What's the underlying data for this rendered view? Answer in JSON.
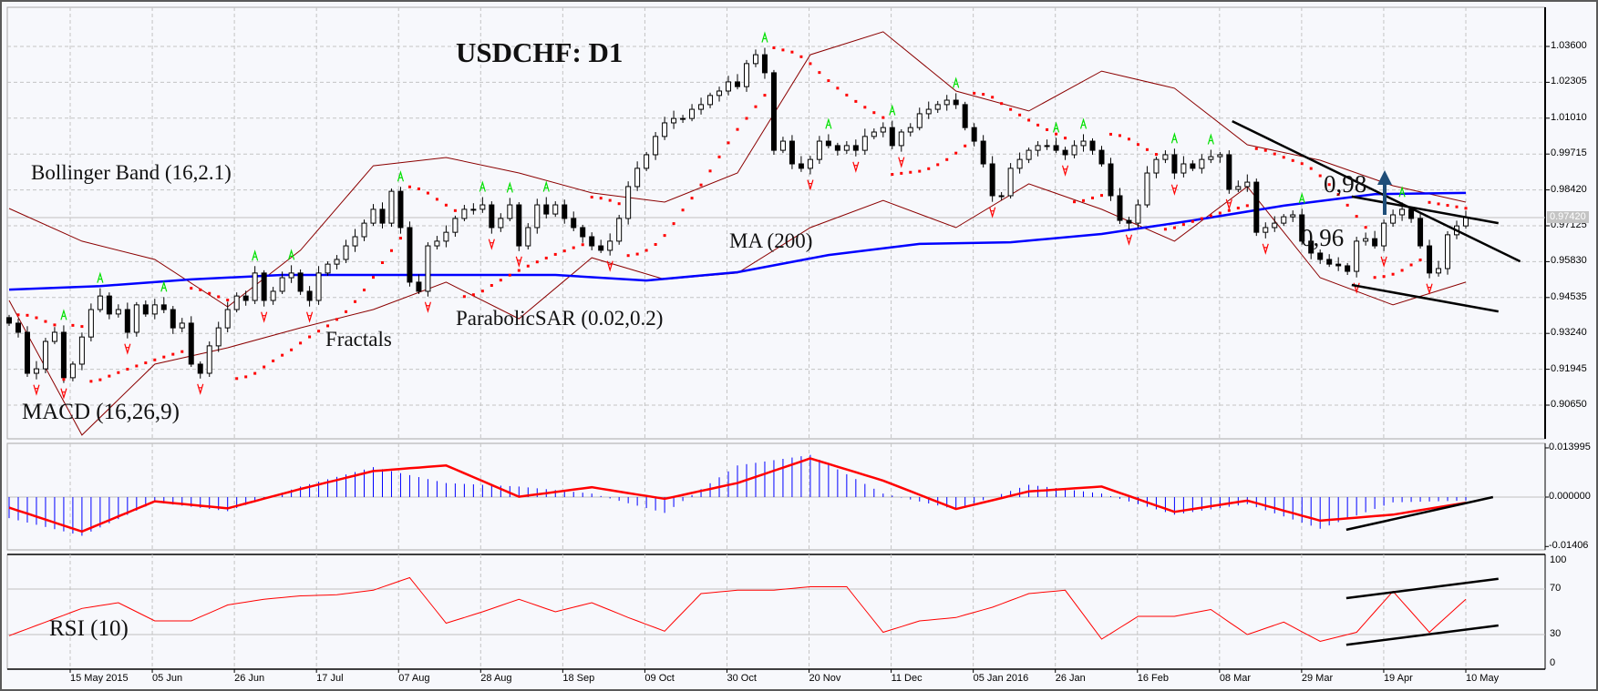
{
  "chart_data": {
    "type": "candlestick",
    "title": "USDCHF: D1",
    "price_axis": {
      "ticks": [
        "1.03600",
        "1.02305",
        "1.01010",
        "0.99715",
        "0.98420",
        "0.97125",
        "0.95830",
        "0.94535",
        "0.93240",
        "0.91945",
        "0.90650"
      ],
      "tick_values": [
        1.036,
        1.02305,
        1.0101,
        0.99715,
        0.9842,
        0.97125,
        0.9583,
        0.94535,
        0.9324,
        0.91945,
        0.9065
      ],
      "current_price": "0.97420",
      "current_price_value": 0.9742
    },
    "time_axis": {
      "ticks": [
        "15 May 2015",
        "05 Jun",
        "26 Jun",
        "17 Jul",
        "07 Aug",
        "28 Aug",
        "18 Sep",
        "09 Oct",
        "30 Oct",
        "20 Nov",
        "11 Dec",
        "05 Jan 2016",
        "26 Jan",
        "16 Feb",
        "08 Mar",
        "29 Mar",
        "19 Apr",
        "10 May"
      ],
      "last_bar_date": "10 May 2016"
    },
    "close": [
      0.9361,
      0.9328,
      0.918,
      0.9196,
      0.9295,
      0.9328,
      0.9164,
      0.9213,
      0.9311,
      0.941,
      0.9459,
      0.9394,
      0.941,
      0.9328,
      0.9427,
      0.9394,
      0.9427,
      0.941,
      0.9344,
      0.9361,
      0.9213,
      0.918,
      0.9279,
      0.9344,
      0.941,
      0.9459,
      0.9443,
      0.9542,
      0.9443,
      0.9476,
      0.9525,
      0.9542,
      0.9476,
      0.9443,
      0.9542,
      0.9574,
      0.9591,
      0.964,
      0.9673,
      0.9722,
      0.9772,
      0.9722,
      0.9837,
      0.9706,
      0.9509,
      0.9476,
      0.964,
      0.9657,
      0.9689,
      0.9739,
      0.9772,
      0.9772,
      0.9788,
      0.9706,
      0.9739,
      0.9788,
      0.964,
      0.9706,
      0.9788,
      0.9755,
      0.9788,
      0.9739,
      0.9706,
      0.9673,
      0.964,
      0.9624,
      0.9657,
      0.9739,
      0.9854,
      0.992,
      0.9969,
      1.0035,
      1.0084,
      1.01,
      1.01,
      1.0133,
      1.015,
      1.0183,
      1.0199,
      1.0232,
      1.0215,
      1.0298,
      1.033,
      1.0265,
      0.9985,
      1.0018,
      0.9936,
      0.992,
      0.9952,
      1.0018,
      1.0002,
      0.9985,
      1.0002,
      0.9985,
      1.0035,
      1.0051,
      1.0067,
      1.0002,
      1.0051,
      1.0067,
      1.0117,
      1.0133,
      1.015,
      1.0166,
      1.015,
      1.0067,
      1.0018,
      0.9936,
      0.9821,
      0.9821,
      0.992,
      0.9952,
      0.9985,
      1.0002,
      1.0002,
      0.9985,
      0.9969,
      1.0002,
      1.0018,
      0.9985,
      0.9936,
      0.9821,
      0.9732,
      0.9722,
      0.9788,
      0.9903,
      0.9952,
      0.9969,
      0.9903,
      0.9936,
      0.992,
      0.9952,
      0.9962,
      0.9969,
      0.9844,
      0.9854,
      0.987,
      0.9689,
      0.9706,
      0.9722,
      0.9745,
      0.9752,
      0.9657,
      0.9614,
      0.9591,
      0.9574,
      0.9568,
      0.9548,
      0.9657,
      0.9666,
      0.964,
      0.9722,
      0.9752,
      0.9772,
      0.9739,
      0.964,
      0.9542,
      0.9558,
      0.968,
      0.9712,
      0.9742
    ],
    "indicators": {
      "bollinger": {
        "label": "Bollinger Band (16,2.1)",
        "color": "#8b0000",
        "upper": [
          0.9775,
          0.9657,
          0.9591,
          0.942,
          0.9624,
          0.9929,
          0.9959,
          0.9903,
          0.9831,
          0.9798,
          0.9903,
          1.033,
          1.0413,
          1.0199,
          1.0127,
          1.0271,
          1.0209,
          1.0005,
          0.9949,
          0.9857,
          0.9798
        ],
        "lower": [
          0.9443,
          0.8957,
          0.9213,
          0.9272,
          0.9344,
          0.941,
          0.9509,
          0.9377,
          0.9597,
          0.9519,
          0.9542,
          0.9706,
          0.9804,
          0.9706,
          0.9864,
          0.9772,
          0.9657,
          0.9854,
          0.9525,
          0.9427,
          0.9509
        ]
      },
      "moving_average": {
        "label": "MA (200)",
        "color": "#0000ff",
        "values": [
          0.9482,
          0.9495,
          0.9519,
          0.9535,
          0.9535,
          0.9535,
          0.9535,
          0.9515,
          0.9545,
          0.9607,
          0.9647,
          0.9653,
          0.9683,
          0.9732,
          0.9785,
          0.9827,
          0.9831
        ]
      },
      "parabolic_sar": {
        "label": "ParabolicSAR (0.02,0.2)",
        "color": "#ff0000"
      },
      "fractals": {
        "label": "Fractals",
        "up_color": "#00e000",
        "down_color": "#ff0000"
      },
      "macd": {
        "label": "MACD (16,26,9)",
        "ticks": [
          "0.013995",
          "0.000000",
          "-0.01406"
        ],
        "tick_values": [
          0.013995,
          0,
          -0.01406
        ],
        "histogram_color": "#0000ff",
        "signal_color": "#ff0000",
        "histogram": [
          -0.006,
          -0.011,
          -0.0015,
          -0.004,
          0.003,
          0.0085,
          0.004,
          0.003,
          0.001,
          -0.0045,
          0.009,
          0.012,
          0.001,
          -0.0035,
          0.0035,
          0.001,
          -0.005,
          -0.002,
          -0.009,
          -0.0015,
          -0.001
        ],
        "signal": [
          -0.003,
          -0.0098,
          -0.0012,
          -0.0032,
          0.0023,
          0.0074,
          0.009,
          0.0001,
          0.0028,
          -0.0005,
          0.004,
          0.011,
          0.0047,
          -0.0034,
          0.0016,
          0.003,
          -0.0042,
          -0.001,
          -0.0067,
          -0.005,
          -0.0016
        ]
      },
      "rsi": {
        "label": "RSI (10)",
        "color": "#ff0000",
        "ticks": [
          "100",
          "70",
          "30",
          "0"
        ],
        "tick_values": [
          100,
          70,
          30,
          0
        ],
        "levels": [
          70,
          30
        ],
        "values": [
          29,
          41,
          53,
          58,
          42,
          42,
          56,
          61,
          64,
          65,
          69,
          80,
          40,
          50,
          61,
          50,
          58,
          45,
          33,
          66,
          69,
          69,
          72,
          72,
          32,
          42,
          45,
          54,
          66,
          69,
          26,
          46,
          46,
          52,
          30,
          41,
          24,
          32,
          68,
          32,
          61
        ]
      }
    },
    "annotations": {
      "level_labels": [
        "0,98",
        "0,96"
      ],
      "arrow": {
        "direction": "up",
        "color": "#1f4e79"
      },
      "trendlines": [
        {
          "pane": "price",
          "from": [
            "10 Mar 2016",
            1.009
          ],
          "to": [
            "24 May 2016",
            0.9584
          ]
        },
        {
          "pane": "price",
          "from": [
            "11 Apr 2016",
            0.9818
          ],
          "to": [
            "18 May 2016",
            0.9722
          ]
        },
        {
          "pane": "price",
          "from": [
            "11 Apr 2016",
            0.9499
          ],
          "to": [
            "18 May 2016",
            0.9403
          ]
        },
        {
          "pane": "macd",
          "from": [
            "08 Apr 2016",
            -0.0093
          ],
          "to": [
            "17 May 2016",
            0.0
          ]
        },
        {
          "pane": "rsi",
          "from": [
            "08 Apr 2016",
            62
          ],
          "to": [
            "18 May 2016",
            79
          ]
        },
        {
          "pane": "rsi",
          "from": [
            "08 Apr 2016",
            21
          ],
          "to": [
            "18 May 2016",
            38
          ]
        }
      ]
    }
  }
}
